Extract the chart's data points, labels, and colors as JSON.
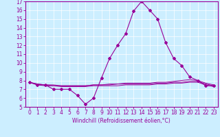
{
  "xlabel": "Windchill (Refroidissement éolien,°C)",
  "bg_color": "#cceeff",
  "line_color": "#990099",
  "hours": [
    0,
    1,
    2,
    3,
    4,
    5,
    6,
    7,
    8,
    9,
    10,
    11,
    12,
    13,
    14,
    15,
    16,
    17,
    18,
    19,
    20,
    21,
    22,
    23
  ],
  "temp_line": [
    7.8,
    7.5,
    7.5,
    7.0,
    7.0,
    7.0,
    6.3,
    5.3,
    6.0,
    8.3,
    10.5,
    12.0,
    13.3,
    15.9,
    17.0,
    16.0,
    15.0,
    12.3,
    10.5,
    9.7,
    8.4,
    8.0,
    7.4,
    7.4
  ],
  "flat_line1": [
    7.8,
    7.6,
    7.5,
    7.5,
    7.4,
    7.4,
    7.4,
    7.4,
    7.5,
    7.5,
    7.6,
    7.6,
    7.7,
    7.7,
    7.7,
    7.7,
    7.8,
    7.8,
    7.9,
    8.0,
    8.1,
    8.0,
    7.7,
    7.5
  ],
  "flat_line2": [
    7.8,
    7.6,
    7.5,
    7.4,
    7.4,
    7.4,
    7.4,
    7.4,
    7.5,
    7.5,
    7.5,
    7.6,
    7.6,
    7.6,
    7.6,
    7.6,
    7.7,
    7.7,
    7.8,
    7.8,
    7.9,
    7.9,
    7.6,
    7.4
  ],
  "flat_line3": [
    7.8,
    7.5,
    7.4,
    7.4,
    7.3,
    7.3,
    7.3,
    7.3,
    7.4,
    7.4,
    7.4,
    7.4,
    7.5,
    7.5,
    7.5,
    7.5,
    7.6,
    7.6,
    7.7,
    7.7,
    7.8,
    7.8,
    7.5,
    7.3
  ],
  "ylim": [
    5,
    17
  ],
  "yticks": [
    5,
    6,
    7,
    8,
    9,
    10,
    11,
    12,
    13,
    14,
    15,
    16,
    17
  ],
  "xlim": [
    -0.5,
    23.5
  ],
  "xticks": [
    0,
    1,
    2,
    3,
    4,
    5,
    6,
    7,
    8,
    9,
    10,
    11,
    12,
    13,
    14,
    15,
    16,
    17,
    18,
    19,
    20,
    21,
    22,
    23
  ],
  "tick_fontsize": 5.5,
  "xlabel_fontsize": 5.5
}
